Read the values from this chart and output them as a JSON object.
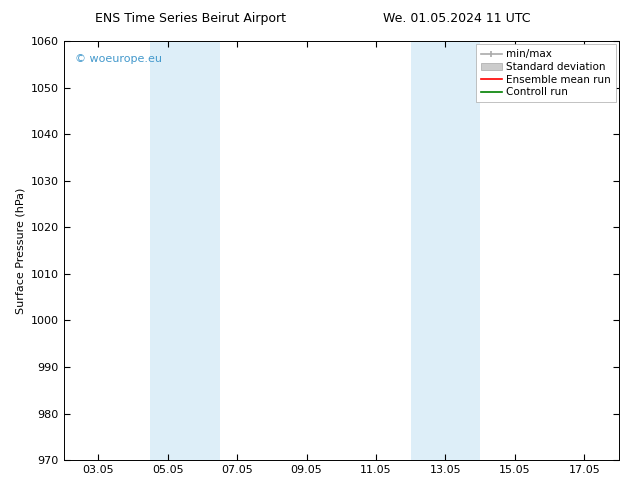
{
  "title_left": "ENS Time Series Beirut Airport",
  "title_right": "We. 01.05.2024 11 UTC",
  "ylabel": "Surface Pressure (hPa)",
  "ylim": [
    970,
    1060
  ],
  "yticks": [
    970,
    980,
    990,
    1000,
    1010,
    1020,
    1030,
    1040,
    1050,
    1060
  ],
  "xtick_labels": [
    "03.05",
    "05.05",
    "07.05",
    "09.05",
    "11.05",
    "13.05",
    "15.05",
    "17.05"
  ],
  "xtick_positions": [
    2,
    4,
    6,
    8,
    10,
    12,
    14,
    16
  ],
  "xlim": [
    1,
    17
  ],
  "shaded_bands": [
    {
      "x_start": 3.5,
      "x_end": 5.5,
      "color": "#ddeef8"
    },
    {
      "x_start": 11.0,
      "x_end": 13.0,
      "color": "#ddeef8"
    }
  ],
  "watermark_text": "© woeurope.eu",
  "watermark_color": "#4499cc",
  "legend_items": [
    {
      "label": "min/max",
      "color": "#aaaaaa",
      "lw": 1.2
    },
    {
      "label": "Standard deviation",
      "color": "#cccccc",
      "lw": 5
    },
    {
      "label": "Ensemble mean run",
      "color": "#ff0000",
      "lw": 1.2
    },
    {
      "label": "Controll run",
      "color": "#008000",
      "lw": 1.2
    }
  ],
  "bg_color": "#ffffff",
  "plot_bg_color": "#ffffff",
  "title_fontsize": 9,
  "ylabel_fontsize": 8,
  "tick_labelsize": 8,
  "legend_fontsize": 7.5,
  "watermark_fontsize": 8,
  "fig_width": 6.34,
  "fig_height": 4.9,
  "dpi": 100
}
